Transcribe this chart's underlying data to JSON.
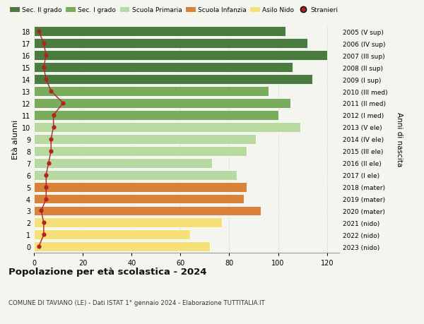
{
  "ages": [
    18,
    17,
    16,
    15,
    14,
    13,
    12,
    11,
    10,
    9,
    8,
    7,
    6,
    5,
    4,
    3,
    2,
    1,
    0
  ],
  "values": [
    103,
    112,
    120,
    106,
    114,
    96,
    105,
    100,
    109,
    91,
    87,
    73,
    83,
    87,
    86,
    93,
    77,
    64,
    72
  ],
  "stranieri": [
    2,
    4,
    5,
    4,
    5,
    7,
    12,
    8,
    8,
    7,
    7,
    6,
    5,
    5,
    5,
    3,
    4,
    4,
    2
  ],
  "right_labels": [
    "2005 (V sup)",
    "2006 (IV sup)",
    "2007 (III sup)",
    "2008 (II sup)",
    "2009 (I sup)",
    "2010 (III med)",
    "2011 (II med)",
    "2012 (I med)",
    "2013 (V ele)",
    "2014 (IV ele)",
    "2015 (III ele)",
    "2016 (II ele)",
    "2017 (I ele)",
    "2018 (mater)",
    "2019 (mater)",
    "2020 (mater)",
    "2021 (nido)",
    "2022 (nido)",
    "2023 (nido)"
  ],
  "bar_colors": [
    "#4a7c3f",
    "#4a7c3f",
    "#4a7c3f",
    "#4a7c3f",
    "#4a7c3f",
    "#7aac5d",
    "#7aac5d",
    "#7aac5d",
    "#b8d9a0",
    "#b8d9a0",
    "#b8d9a0",
    "#b8d9a0",
    "#b8d9a0",
    "#d9833a",
    "#d9833a",
    "#d9833a",
    "#f5e07a",
    "#f5e07a",
    "#f5e07a"
  ],
  "legend_labels": [
    "Sec. II grado",
    "Sec. I grado",
    "Scuola Primaria",
    "Scuola Infanzia",
    "Asilo Nido",
    "Stranieri"
  ],
  "legend_colors": [
    "#4a7c3f",
    "#7aac5d",
    "#b8d9a0",
    "#d9833a",
    "#f5e07a",
    "#b22222"
  ],
  "title": "Popolazione per età scolastica - 2024",
  "subtitle": "COMUNE DI TAVIANO (LE) - Dati ISTAT 1° gennaio 2024 - Elaborazione TUTTITALIA.IT",
  "ylabel_left": "Età alunni",
  "ylabel_right": "Anni di nascita",
  "xlim": [
    0,
    125
  ],
  "bg_color": "#f5f5f0",
  "stranieri_color": "#b22222",
  "grid_color": "#cccccc"
}
